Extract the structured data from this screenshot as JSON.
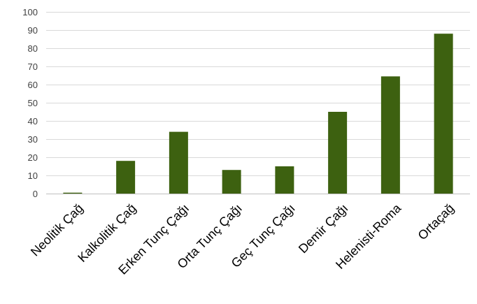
{
  "chart_data": {
    "type": "bar",
    "title": "",
    "xlabel": "",
    "ylabel": "",
    "categories": [
      "Neolitik Çağ",
      "Kalkolitik Çağ",
      "Erken Tunç Çağı",
      "Orta Tunç Çağı",
      "Geç Tunç Çağı",
      "Demir Çağı",
      "Helenisti-Roma",
      "Ortaçağ"
    ],
    "values": [
      0.5,
      18,
      34,
      13,
      15,
      45,
      64.5,
      88
    ],
    "ylim": [
      0,
      100
    ],
    "yticks": [
      0,
      10,
      20,
      30,
      40,
      50,
      60,
      70,
      80,
      90,
      100
    ],
    "grid": true,
    "legend": "none",
    "bar_color": "#3d6110"
  }
}
